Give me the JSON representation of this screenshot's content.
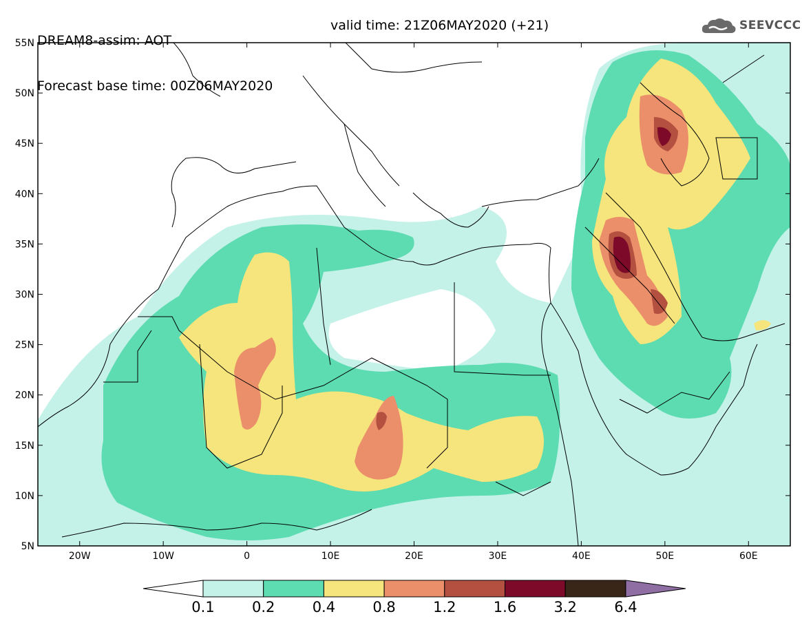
{
  "header": {
    "title_line1": "DREAM8-assim: AOT",
    "title_line2": "Forecast base time: 00Z06MAY2020",
    "valid_time": "valid time: 21Z06MAY2020 (+21)",
    "logo_text": "SEEVCCC",
    "logo_icon": "cloud-icon"
  },
  "map": {
    "lat_labels": [
      "55N",
      "50N",
      "45N",
      "40N",
      "35N",
      "30N",
      "25N",
      "20N",
      "15N",
      "10N",
      "5N"
    ],
    "lon_labels": [
      "20W",
      "10W",
      "0",
      "10E",
      "20E",
      "30E",
      "40E",
      "50E",
      "60E"
    ],
    "lon_range": [
      -25,
      65
    ],
    "lat_range": [
      5,
      55
    ]
  },
  "colorbar": {
    "labels": [
      "0.1",
      "0.2",
      "0.4",
      "0.8",
      "1.2",
      "1.6",
      "3.2",
      "6.4"
    ],
    "colors": [
      "#c4f1e8",
      "#5cdcb0",
      "#f5e57c",
      "#eb8f6a",
      "#b3503f",
      "#7c0a28",
      "#3a2519",
      "#8e6ea3"
    ]
  }
}
